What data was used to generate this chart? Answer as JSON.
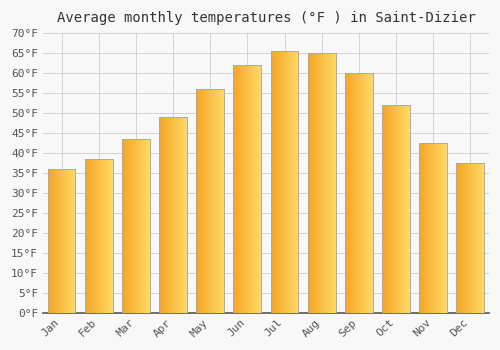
{
  "title": "Average monthly temperatures (°F ) in Saint-Dizier",
  "months": [
    "Jan",
    "Feb",
    "Mar",
    "Apr",
    "May",
    "Jun",
    "Jul",
    "Aug",
    "Sep",
    "Oct",
    "Nov",
    "Dec"
  ],
  "values": [
    36,
    38.5,
    43.5,
    49,
    56,
    62,
    65.5,
    65,
    60,
    52,
    42.5,
    37.5
  ],
  "bar_color_left": "#F5A623",
  "bar_color_right": "#FFD966",
  "bar_edge_color": "#AAAAAA",
  "ylim": [
    0,
    70
  ],
  "ytick_step": 5,
  "background_color": "#F8F8F8",
  "plot_bg_color": "#F8F8F8",
  "grid_color": "#CCCCCC",
  "title_fontsize": 10,
  "tick_fontsize": 8,
  "font_family": "monospace"
}
